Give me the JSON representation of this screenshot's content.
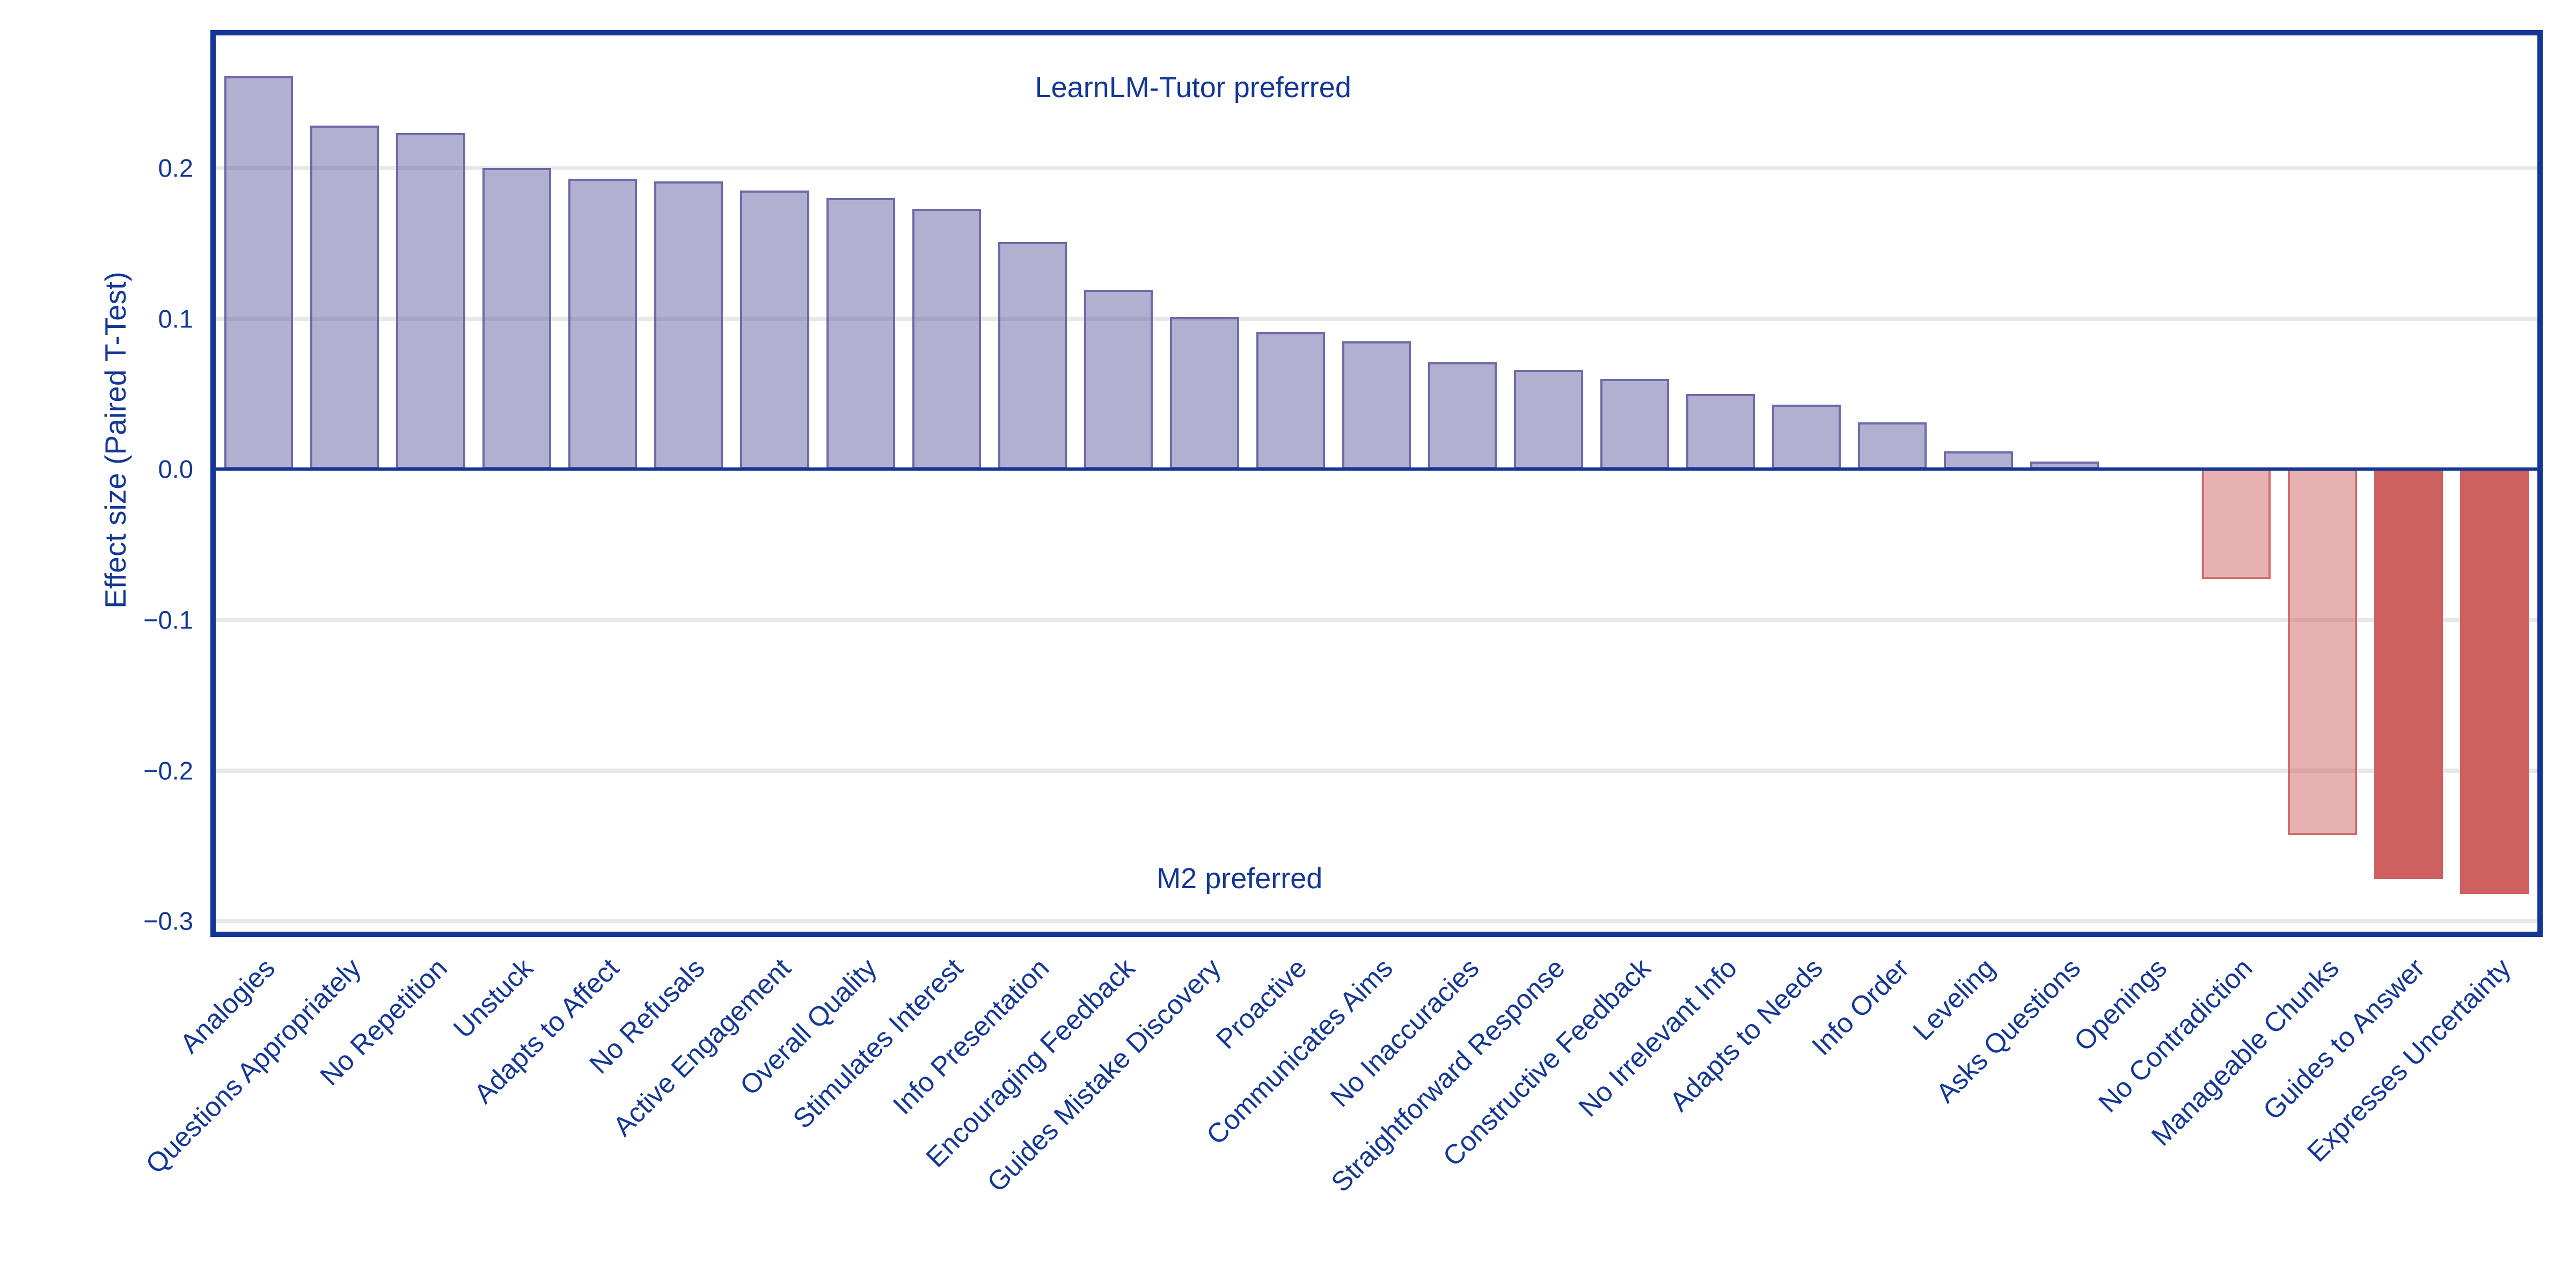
{
  "figure": {
    "ylabel": "Effect size (Paired T-Test)",
    "annotation_top": "LearnLM-Tutor preferred",
    "annotation_bottom": "M2 preferred"
  },
  "colors": {
    "navy": "#143795",
    "grid": "#e8e8e8",
    "pos_fill": "rgba(92,90,158,0.48)",
    "pos_border": "rgba(92,90,158,0.8)",
    "neg_light_fill": "rgba(205,92,92,0.48)",
    "neg_light_border": "rgba(205,92,92,0.8)",
    "neg_strong_fill": "#cf6060",
    "neg_strong_border": "#cf6060"
  },
  "chart_data": {
    "type": "bar",
    "title": "",
    "xlabel": "",
    "ylabel": "Effect size (Paired T-Test)",
    "ylim": [
      -0.307,
      0.288
    ],
    "grid": true,
    "legend": false,
    "yticks": [
      {
        "label": "0.2",
        "value": 0.2
      },
      {
        "label": "0.1",
        "value": 0.1
      },
      {
        "label": "0.0",
        "value": 0.0
      },
      {
        "label": "−0.1",
        "value": -0.1
      },
      {
        "label": "−0.2",
        "value": -0.2
      },
      {
        "label": "−0.3",
        "value": -0.3
      }
    ],
    "categories": [
      "Analogies",
      "Questions Appropriately",
      "No Repetition",
      "Unstuck",
      "Adapts to Affect",
      "No Refusals",
      "Active Engagement",
      "Overall Quality",
      "Stimulates Interest",
      "Info Presentation",
      "Encouraging Feedback",
      "Guides Mistake Discovery",
      "Proactive",
      "Communicates Aims",
      "No Inaccuracies",
      "Straightforward Response",
      "Constructive Feedback",
      "No Irrelevant Info",
      "Adapts to Needs",
      "Info Order",
      "Leveling",
      "Asks Questions",
      "Openings",
      "No Contradiction",
      "Manageable Chunks",
      "Guides to Answer",
      "Expresses Uncertainty"
    ],
    "values": [
      0.261,
      0.228,
      0.223,
      0.2,
      0.193,
      0.191,
      0.185,
      0.18,
      0.173,
      0.151,
      0.119,
      0.101,
      0.091,
      0.085,
      0.071,
      0.066,
      0.06,
      0.05,
      0.043,
      0.031,
      0.012,
      0.005,
      0.0,
      -0.073,
      -0.243,
      -0.272,
      -0.282
    ],
    "bar_styles": [
      "pos",
      "pos",
      "pos",
      "pos",
      "pos",
      "pos",
      "pos",
      "pos",
      "pos",
      "pos",
      "pos",
      "pos",
      "pos",
      "pos",
      "pos",
      "pos",
      "pos",
      "pos",
      "pos",
      "pos",
      "pos",
      "pos",
      "pos",
      "neg_light",
      "neg_light",
      "neg_strong",
      "neg_strong"
    ],
    "annotations": [
      {
        "text": "LearnLM-Tutor preferred",
        "position": "top-center"
      },
      {
        "text": "M2 preferred",
        "position": "bottom-center"
      }
    ]
  }
}
